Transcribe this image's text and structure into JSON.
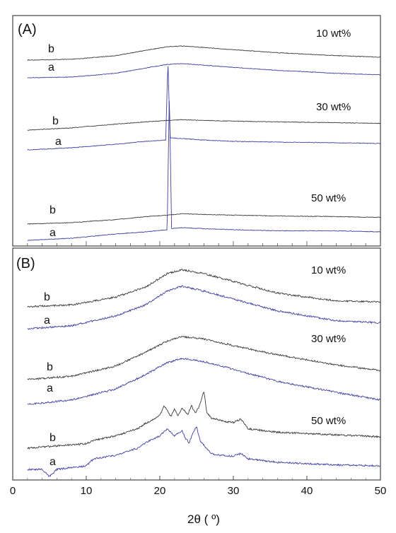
{
  "colors": {
    "trace_b": "#3a3a3a",
    "trace_a": "#4040a0",
    "frame": "#444444"
  },
  "chart_data": [
    {
      "type": "line",
      "panel_label": "(A)",
      "xlim": [
        2,
        50
      ],
      "ylabel": "",
      "groups": [
        {
          "label": "10 wt%",
          "series": [
            {
              "name": "b",
              "x": [
                2,
                8,
                14,
                18,
                21,
                23,
                26,
                30,
                36,
                44,
                50
              ],
              "y": [
                0,
                1,
                6,
                13,
                18,
                19,
                17,
                14,
                10,
                6,
                4
              ]
            },
            {
              "name": "a",
              "x": [
                2,
                8,
                14,
                18,
                21,
                23,
                26,
                30,
                36,
                44,
                50
              ],
              "y": [
                0,
                1,
                6,
                13,
                18,
                19,
                17,
                14,
                10,
                6,
                4
              ]
            }
          ]
        },
        {
          "label": "30 wt%",
          "series": [
            {
              "name": "b",
              "x": [
                2,
                8,
                14,
                18,
                21,
                23,
                26,
                30,
                36,
                44,
                50
              ],
              "y": [
                0,
                3,
                8,
                11,
                13,
                14,
                13,
                12,
                11,
                10,
                9
              ]
            },
            {
              "name": "a",
              "x": [
                2,
                8,
                14,
                18,
                20.8,
                21.1,
                21.4,
                23,
                26,
                30,
                36,
                44,
                50
              ],
              "y": [
                0,
                3,
                8,
                12,
                14,
                125,
                17,
                16,
                14,
                12,
                11,
                10,
                9
              ]
            }
          ]
        },
        {
          "label": "50 wt%",
          "series": [
            {
              "name": "b",
              "x": [
                2,
                8,
                14,
                18,
                21,
                23,
                26,
                30,
                36,
                44,
                50
              ],
              "y": [
                0,
                2,
                6,
                10,
                12,
                14,
                13,
                12,
                11,
                10,
                9
              ]
            },
            {
              "name": "a",
              "x": [
                2,
                8,
                14,
                18,
                21,
                21.3,
                21.6,
                23,
                26,
                30,
                36,
                44,
                50
              ],
              "y": [
                0,
                2,
                6,
                8,
                10,
                140,
                11,
                12,
                11,
                10,
                9,
                9,
                8
              ]
            }
          ]
        }
      ]
    },
    {
      "type": "line",
      "panel_label": "(B)",
      "xlim": [
        0,
        50
      ],
      "xticks": [
        0,
        10,
        20,
        30,
        40,
        50
      ],
      "xlabel": "2θ ( º)",
      "groups": [
        {
          "label": "10 wt%",
          "series": [
            {
              "name": "b",
              "x": [
                2,
                8,
                14,
                18,
                21,
                23,
                26,
                30,
                36,
                44,
                50
              ],
              "y": [
                0,
                2,
                10,
                20,
                34,
                38,
                34,
                26,
                14,
                6,
                5
              ]
            },
            {
              "name": "a",
              "x": [
                2,
                8,
                14,
                18,
                21,
                23,
                26,
                30,
                36,
                44,
                50
              ],
              "y": [
                0,
                3,
                13,
                24,
                38,
                43,
                38,
                30,
                18,
                8,
                6
              ]
            }
          ]
        },
        {
          "label": "30 wt%",
          "series": [
            {
              "name": "b",
              "x": [
                2,
                8,
                14,
                18,
                21,
                23,
                26,
                30,
                36,
                44,
                50
              ],
              "y": [
                0,
                3,
                12,
                24,
                34,
                38,
                36,
                30,
                22,
                13,
                8
              ]
            },
            {
              "name": "a",
              "x": [
                2,
                8,
                14,
                18,
                21,
                23,
                26,
                30,
                36,
                44,
                50
              ],
              "y": [
                0,
                4,
                14,
                27,
                38,
                42,
                39,
                32,
                21,
                11,
                4
              ]
            }
          ]
        },
        {
          "label": "50 wt%",
          "series": [
            {
              "name": "b",
              "x": [
                2,
                5,
                8,
                10,
                11,
                14,
                17,
                18,
                19,
                20,
                20.6,
                21.5,
                22,
                22.5,
                23,
                23.8,
                24.3,
                24.8,
                25.3,
                25.6,
                26,
                26.4,
                27,
                28,
                29,
                30,
                31,
                32,
                36,
                44,
                50
              ],
              "y": [
                0,
                2,
                4,
                5,
                9,
                14,
                22,
                28,
                32,
                37,
                48,
                36,
                44,
                36,
                46,
                38,
                48,
                40,
                46,
                54,
                64,
                40,
                34,
                32,
                30,
                29,
                33,
                22,
                18,
                15,
                13
              ]
            },
            {
              "name": "a",
              "x": [
                2,
                4,
                5,
                6,
                8,
                10,
                11,
                14,
                17,
                18,
                19,
                20,
                21,
                22,
                23,
                23.5,
                24,
                24.5,
                25,
                25.5,
                26,
                26.5,
                27,
                28,
                30,
                31,
                32,
                36,
                44,
                50
              ],
              "y": [
                0,
                0,
                -8,
                0,
                2,
                4,
                12,
                16,
                24,
                30,
                34,
                38,
                46,
                38,
                44,
                35,
                30,
                42,
                48,
                32,
                28,
                22,
                18,
                16,
                15,
                18,
                12,
                8,
                5,
                4
              ]
            }
          ]
        }
      ]
    }
  ]
}
